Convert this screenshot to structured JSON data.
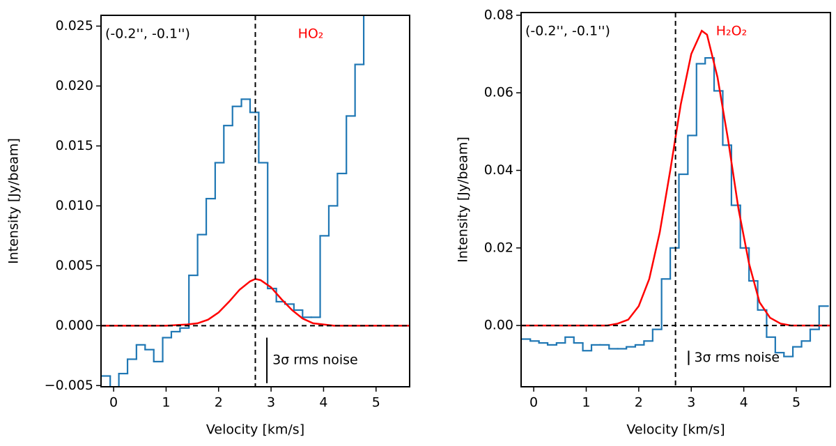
{
  "chart_data": [
    {
      "type": "line",
      "xlabel": "Velocity [km/s]",
      "ylabel": "Intensity [Jy/beam]",
      "annotation": "(-0.2'', -0.1'')",
      "species": "HO₂",
      "species_color": "#ff0000",
      "xlim": [
        -0.24,
        5.64
      ],
      "ylim": [
        -0.0051,
        0.0259
      ],
      "xticks": [
        0,
        1,
        2,
        3,
        4,
        5
      ],
      "yticks": [
        {
          "value": -0.005,
          "label": "−0.005"
        },
        {
          "value": 0,
          "label": "0.000"
        },
        {
          "value": 0.005,
          "label": "0.005"
        },
        {
          "value": 0.01,
          "label": "0.010"
        },
        {
          "value": 0.015,
          "label": "0.015"
        },
        {
          "value": 0.02,
          "label": "0.020"
        },
        {
          "value": 0.025,
          "label": "0.025"
        }
      ],
      "vline": 2.7,
      "hline": 0,
      "noise": {
        "label": "3σ rms noise",
        "x": 2.92,
        "y": [
          -0.001,
          -0.0048
        ]
      },
      "series": [
        {
          "color": "#1f77b4",
          "drawstyle": "steps-mid",
          "x": [
            -0.15,
            0.02,
            0.18,
            0.35,
            0.52,
            0.68,
            0.85,
            1.02,
            1.18,
            1.35,
            1.52,
            1.68,
            1.85,
            2.02,
            2.18,
            2.35,
            2.52,
            2.68,
            2.85,
            3.02,
            3.18,
            3.35,
            3.52,
            3.68,
            3.85,
            4.02,
            4.18,
            4.35,
            4.52,
            4.68,
            4.85
          ],
          "values": [
            -0.0042,
            -0.0053,
            -0.004,
            -0.0028,
            -0.0016,
            -0.002,
            -0.003,
            -0.001,
            -0.0005,
            -0.0002,
            0.0042,
            0.0076,
            0.0106,
            0.0136,
            0.0167,
            0.0183,
            0.0189,
            0.0178,
            0.0136,
            0.0031,
            0.002,
            0.0018,
            0.0013,
            0.0007,
            0.0007,
            0.0075,
            0.01,
            0.0127,
            0.0175,
            0.0218,
            0.028
          ]
        },
        {
          "color": "#ff0000",
          "x": [
            -0.24,
            1.0,
            1.4,
            1.6,
            1.8,
            2.0,
            2.2,
            2.4,
            2.6,
            2.7,
            2.8,
            3.0,
            3.2,
            3.4,
            3.6,
            3.8,
            4.0,
            4.2,
            5.64
          ],
          "values": [
            0,
            0,
            0.0001,
            0.0002,
            0.0005,
            0.0011,
            0.002,
            0.003,
            0.0037,
            0.0039,
            0.0038,
            0.0032,
            0.0022,
            0.0013,
            0.0006,
            0.0002,
            0.0001,
            0,
            0
          ]
        }
      ]
    },
    {
      "type": "line",
      "xlabel": "Velocity [km/s]",
      "ylabel": "Intensity [Jy/beam]",
      "annotation": "(-0.2'', -0.1'')",
      "species": "H₂O₂",
      "species_color": "#ff0000",
      "xlim": [
        -0.24,
        5.65
      ],
      "ylim": [
        -0.0158,
        0.0807
      ],
      "xticks": [
        0,
        1,
        2,
        3,
        4,
        5
      ],
      "yticks": [
        {
          "value": 0,
          "label": "0.00"
        },
        {
          "value": 0.02,
          "label": "0.02"
        },
        {
          "value": 0.04,
          "label": "0.04"
        },
        {
          "value": 0.06,
          "label": "0.06"
        },
        {
          "value": 0.08,
          "label": "0.08"
        }
      ],
      "vline": 2.7,
      "hline": 0,
      "noise": {
        "label": "3σ rms noise",
        "x": 2.95,
        "y": [
          -0.0065,
          -0.0102
        ]
      },
      "series": [
        {
          "color": "#1f77b4",
          "drawstyle": "steps-mid",
          "x": [
            -0.15,
            0.02,
            0.18,
            0.35,
            0.52,
            0.68,
            0.85,
            1.02,
            1.18,
            1.35,
            1.52,
            1.68,
            1.85,
            2.02,
            2.18,
            2.35,
            2.52,
            2.68,
            2.85,
            3.02,
            3.18,
            3.35,
            3.52,
            3.68,
            3.85,
            4.02,
            4.18,
            4.35,
            4.52,
            4.68,
            4.85,
            5.02,
            5.18,
            5.35,
            5.52
          ],
          "values": [
            -0.0035,
            -0.004,
            -0.0045,
            -0.005,
            -0.0045,
            -0.003,
            -0.0045,
            -0.0065,
            -0.005,
            -0.005,
            -0.006,
            -0.006,
            -0.0055,
            -0.005,
            -0.004,
            -0.001,
            0.012,
            0.02,
            0.039,
            0.049,
            0.0675,
            0.069,
            0.0605,
            0.0465,
            0.031,
            0.02,
            0.0115,
            0.004,
            -0.003,
            -0.007,
            -0.008,
            -0.0055,
            -0.004,
            -0.001,
            0.005
          ]
        },
        {
          "color": "#ff0000",
          "x": [
            -0.24,
            1.4,
            1.6,
            1.8,
            2.0,
            2.2,
            2.4,
            2.6,
            2.8,
            3.0,
            3.2,
            3.3,
            3.5,
            3.7,
            3.9,
            4.1,
            4.3,
            4.5,
            4.7,
            4.9,
            5.65
          ],
          "values": [
            0,
            0,
            0.0005,
            0.0015,
            0.005,
            0.012,
            0.024,
            0.04,
            0.057,
            0.07,
            0.076,
            0.075,
            0.064,
            0.048,
            0.03,
            0.016,
            0.006,
            0.002,
            0.0005,
            0,
            0
          ]
        }
      ]
    }
  ]
}
